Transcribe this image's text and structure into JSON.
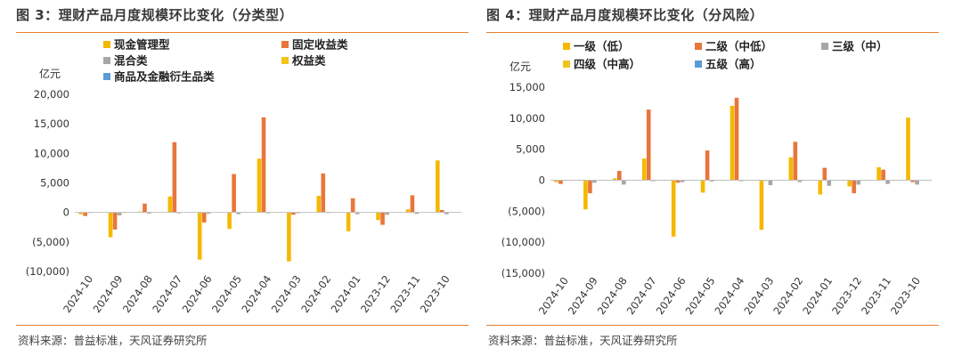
{
  "colors": {
    "rule": "#e87d2e",
    "title": "#3a3a3a",
    "source": "#444444"
  },
  "charts": [
    {
      "title": "图 3：理财产品月度规模环比变化（分类型）",
      "source": "资料来源：普益标准，天风证券研究所",
      "unit_label": "亿元",
      "chart_data": {
        "type": "bar",
        "categories": [
          "2024-10",
          "2024-09",
          "2024-08",
          "2024-07",
          "2024-06",
          "2024-05",
          "2024-04",
          "2024-03",
          "2024-02",
          "2024-01",
          "2023-12",
          "2023-11",
          "2023-10"
        ],
        "ylim": [
          -10000,
          20000
        ],
        "yticks": [
          -10000,
          -5000,
          0,
          5000,
          10000,
          15000,
          20000
        ],
        "ytick_labels": [
          "(10,000)",
          "(5,000)",
          "0",
          "5,000",
          "10,000",
          "15,000",
          "20,000"
        ],
        "ylabel": "亿元",
        "legend_position": "top",
        "series": [
          {
            "name": "现金管理型",
            "color": "#f5b800",
            "values": [
              -300,
              -4200,
              150,
              2700,
              -8000,
              -2800,
              9100,
              -8300,
              2800,
              -3200,
              -1300,
              500,
              8800
            ]
          },
          {
            "name": "固定收益类",
            "color": "#e8763a",
            "values": [
              -600,
              -2900,
              1500,
              11900,
              -1700,
              6500,
              16100,
              -400,
              6600,
              2400,
              -2100,
              2900,
              400
            ]
          },
          {
            "name": "混合类",
            "color": "#a6a6a6",
            "values": [
              -80,
              -500,
              -200,
              -150,
              -200,
              -300,
              -150,
              -150,
              -100,
              -300,
              -400,
              -250,
              -300
            ]
          },
          {
            "name": "权益类",
            "color": "#f0c419",
            "values": [
              0,
              -100,
              0,
              0,
              0,
              0,
              0,
              0,
              0,
              0,
              0,
              0,
              0
            ]
          },
          {
            "name": "商品及金融衍生品类",
            "color": "#5b9bd5",
            "values": [
              0,
              0,
              0,
              0,
              0,
              0,
              0,
              0,
              0,
              0,
              0,
              0,
              0
            ]
          }
        ]
      }
    },
    {
      "title": "图 4：理财产品月度规模环比变化（分风险）",
      "source": "资料来源：普益标准，天风证券研究所",
      "unit_label": "亿元",
      "chart_data": {
        "type": "bar",
        "categories": [
          "2024-10",
          "2024-09",
          "2024-08",
          "2024-07",
          "2024-06",
          "2024-05",
          "2024-04",
          "2024-03",
          "2024-02",
          "2024-01",
          "2023-12",
          "2023-11",
          "2023-10"
        ],
        "ylim": [
          -15000,
          15000
        ],
        "yticks": [
          -15000,
          -10000,
          -5000,
          0,
          5000,
          10000,
          15000
        ],
        "ytick_labels": [
          "(15,000)",
          "(10,000)",
          "(5,000)",
          "0",
          "5,000",
          "10,000",
          "15,000"
        ],
        "ylabel": "亿元",
        "legend_position": "top",
        "series": [
          {
            "name": "一级（低）",
            "color": "#f5b800",
            "values": [
              -300,
              -4700,
              300,
              3500,
              -9100,
              -2000,
              12000,
              -8000,
              3700,
              -2300,
              -1000,
              2100,
              10100
            ]
          },
          {
            "name": "二级（中低）",
            "color": "#e8763a",
            "values": [
              -600,
              -2100,
              1500,
              11400,
              -400,
              4800,
              13300,
              -100,
              6200,
              2000,
              -2100,
              1700,
              -300
            ]
          },
          {
            "name": "三级（中）",
            "color": "#a6a6a6",
            "values": [
              -100,
              -400,
              -700,
              -150,
              -300,
              -200,
              -150,
              -800,
              -300,
              -900,
              -700,
              -600,
              -700
            ]
          },
          {
            "name": "四级（中高）",
            "color": "#f0c419",
            "values": [
              0,
              0,
              0,
              0,
              0,
              0,
              0,
              0,
              0,
              0,
              0,
              0,
              0
            ]
          },
          {
            "name": "五级（高）",
            "color": "#5b9bd5",
            "values": [
              0,
              0,
              0,
              0,
              0,
              0,
              0,
              0,
              0,
              0,
              0,
              0,
              0
            ]
          }
        ]
      }
    }
  ]
}
